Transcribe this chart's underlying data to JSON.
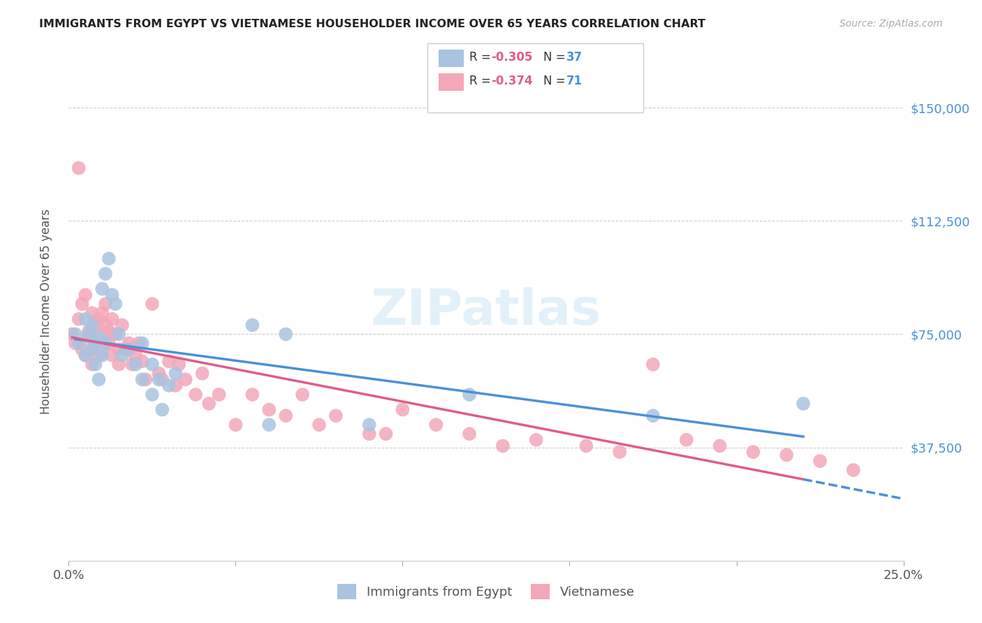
{
  "title": "IMMIGRANTS FROM EGYPT VS VIETNAMESE HOUSEHOLDER INCOME OVER 65 YEARS CORRELATION CHART",
  "source": "Source: ZipAtlas.com",
  "ylabel": "Householder Income Over 65 years",
  "yticks": [
    0,
    37500,
    75000,
    112500,
    150000
  ],
  "ytick_labels": [
    "",
    "$37,500",
    "$75,000",
    "$112,500",
    "$150,000"
  ],
  "xlim": [
    0,
    0.25
  ],
  "ylim": [
    15000,
    165000
  ],
  "egypt_R": -0.305,
  "egypt_N": 37,
  "viet_R": -0.374,
  "viet_N": 71,
  "egypt_color": "#a8c4e0",
  "egypt_line_color": "#4a90d9",
  "viet_color": "#f4a7b9",
  "viet_line_color": "#e05c8a",
  "dash_line_color": "#4a90d9",
  "watermark": "ZIPatlas",
  "egypt_scatter_x": [
    0.002,
    0.003,
    0.005,
    0.005,
    0.006,
    0.007,
    0.007,
    0.008,
    0.008,
    0.009,
    0.009,
    0.01,
    0.01,
    0.011,
    0.011,
    0.012,
    0.013,
    0.014,
    0.015,
    0.016,
    0.018,
    0.02,
    0.022,
    0.022,
    0.025,
    0.025,
    0.027,
    0.028,
    0.03,
    0.032,
    0.055,
    0.06,
    0.065,
    0.09,
    0.12,
    0.175,
    0.22
  ],
  "egypt_scatter_y": [
    75000,
    72000,
    80000,
    68000,
    75000,
    70000,
    78000,
    65000,
    72000,
    74000,
    60000,
    90000,
    68000,
    95000,
    72000,
    100000,
    88000,
    85000,
    75000,
    68000,
    70000,
    65000,
    72000,
    60000,
    65000,
    55000,
    60000,
    50000,
    58000,
    62000,
    78000,
    45000,
    75000,
    45000,
    55000,
    48000,
    52000
  ],
  "viet_scatter_x": [
    0.001,
    0.002,
    0.003,
    0.003,
    0.004,
    0.004,
    0.005,
    0.005,
    0.006,
    0.006,
    0.007,
    0.007,
    0.007,
    0.008,
    0.008,
    0.009,
    0.009,
    0.01,
    0.01,
    0.01,
    0.011,
    0.011,
    0.012,
    0.012,
    0.013,
    0.013,
    0.014,
    0.015,
    0.015,
    0.016,
    0.017,
    0.018,
    0.019,
    0.02,
    0.021,
    0.022,
    0.023,
    0.025,
    0.027,
    0.028,
    0.03,
    0.032,
    0.033,
    0.035,
    0.038,
    0.04,
    0.042,
    0.045,
    0.05,
    0.055,
    0.06,
    0.065,
    0.07,
    0.075,
    0.08,
    0.09,
    0.095,
    0.1,
    0.11,
    0.12,
    0.13,
    0.14,
    0.155,
    0.165,
    0.175,
    0.185,
    0.195,
    0.205,
    0.215,
    0.225,
    0.235
  ],
  "viet_scatter_y": [
    75000,
    72000,
    130000,
    80000,
    70000,
    85000,
    68000,
    88000,
    74000,
    76000,
    70000,
    82000,
    65000,
    78000,
    72000,
    80000,
    68000,
    75000,
    82000,
    70000,
    78000,
    85000,
    72000,
    76000,
    68000,
    80000,
    75000,
    70000,
    65000,
    78000,
    70000,
    72000,
    65000,
    68000,
    72000,
    66000,
    60000,
    85000,
    62000,
    60000,
    66000,
    58000,
    65000,
    60000,
    55000,
    62000,
    52000,
    55000,
    45000,
    55000,
    50000,
    48000,
    55000,
    45000,
    48000,
    42000,
    42000,
    50000,
    45000,
    42000,
    38000,
    40000,
    38000,
    36000,
    65000,
    40000,
    38000,
    36000,
    35000,
    33000,
    30000
  ]
}
